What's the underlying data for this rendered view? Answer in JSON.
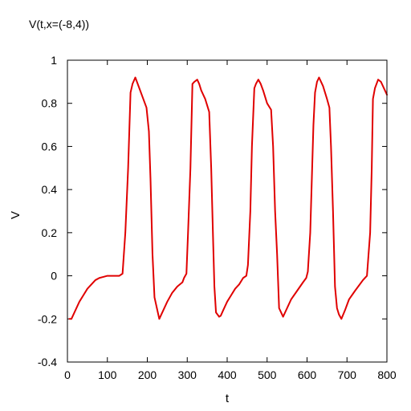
{
  "chart_data": {
    "type": "line",
    "title": "V(t,x=(-8,4))",
    "xlabel": "t",
    "ylabel": "V",
    "xlim": [
      0,
      800
    ],
    "ylim": [
      -0.4,
      1
    ],
    "xticks": [
      0,
      100,
      200,
      300,
      400,
      500,
      600,
      700,
      800
    ],
    "yticks": [
      -0.4,
      -0.2,
      0,
      0.2,
      0.4,
      0.6,
      0.8,
      1
    ],
    "xtick_labels": [
      "0",
      "100",
      "200",
      "300",
      "400",
      "500",
      "600",
      "700",
      "800"
    ],
    "ytick_labels": [
      "-0.4",
      "-0.2",
      "0",
      "0.2",
      "0.4",
      "0.6",
      "0.8",
      "1"
    ],
    "grid": false,
    "series": [
      {
        "color": "#e00000",
        "x": [
          5,
          10,
          20,
          30,
          40,
          50,
          60,
          70,
          80,
          90,
          100,
          110,
          120,
          130,
          138,
          145,
          152,
          158,
          163,
          170,
          180,
          190,
          198,
          204,
          208,
          213,
          218,
          224,
          230,
          240,
          250,
          262,
          275,
          288,
          292,
          298,
          302,
          308,
          313,
          318,
          325,
          330,
          335,
          345,
          355,
          360,
          365,
          368,
          372,
          376,
          380,
          384,
          390,
          400,
          410,
          420,
          430,
          440,
          448,
          452,
          458,
          462,
          468,
          472,
          478,
          484,
          490,
          500,
          510,
          515,
          520,
          525,
          530,
          535,
          540,
          550,
          560,
          575,
          590,
          598,
          602,
          608,
          612,
          616,
          620,
          625,
          630,
          640,
          650,
          656,
          660,
          665,
          670,
          675,
          680,
          686,
          695,
          705,
          720,
          740,
          750,
          754,
          758,
          762,
          765,
          770,
          778,
          785,
          795,
          800
        ],
        "y": [
          -0.2,
          -0.2,
          -0.16,
          -0.12,
          -0.09,
          -0.06,
          -0.04,
          -0.02,
          -0.01,
          -0.005,
          0.0,
          0.0,
          0.0,
          0.0,
          0.01,
          0.2,
          0.5,
          0.85,
          0.89,
          0.92,
          0.87,
          0.82,
          0.78,
          0.67,
          0.45,
          0.1,
          -0.1,
          -0.15,
          -0.2,
          -0.16,
          -0.12,
          -0.08,
          -0.05,
          -0.03,
          -0.01,
          0.01,
          0.2,
          0.5,
          0.89,
          0.9,
          0.91,
          0.89,
          0.86,
          0.82,
          0.76,
          0.5,
          0.15,
          -0.05,
          -0.17,
          -0.18,
          -0.19,
          -0.185,
          -0.16,
          -0.12,
          -0.09,
          -0.06,
          -0.04,
          -0.01,
          0.0,
          0.05,
          0.3,
          0.6,
          0.87,
          0.89,
          0.91,
          0.89,
          0.86,
          0.8,
          0.77,
          0.6,
          0.3,
          0.1,
          -0.15,
          -0.17,
          -0.19,
          -0.15,
          -0.11,
          -0.07,
          -0.03,
          -0.01,
          0.02,
          0.2,
          0.45,
          0.7,
          0.85,
          0.9,
          0.92,
          0.88,
          0.82,
          0.78,
          0.6,
          0.3,
          -0.05,
          -0.15,
          -0.18,
          -0.2,
          -0.16,
          -0.11,
          -0.07,
          -0.02,
          0.0,
          0.1,
          0.2,
          0.5,
          0.82,
          0.87,
          0.91,
          0.9,
          0.86,
          0.84
        ]
      }
    ]
  }
}
